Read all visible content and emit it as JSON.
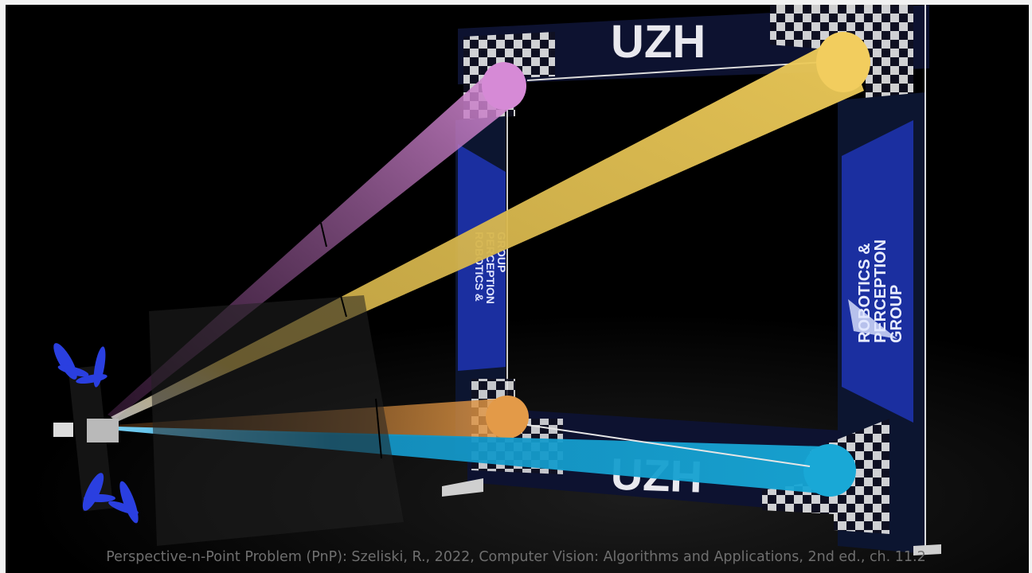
{
  "gate": {
    "banner_text_top": "UZH",
    "banner_text_bottom": "UZH",
    "side_logo_line1": "ROBOTICS &",
    "side_logo_line2": "PERCEPTION",
    "side_logo_line3": "GROUP"
  },
  "rays": [
    {
      "name": "pink",
      "color": "#d68ad6"
    },
    {
      "name": "yellow",
      "color": "#f0cd5a"
    },
    {
      "name": "orange",
      "color": "#e79a45"
    },
    {
      "name": "cyan",
      "color": "#14a8d8"
    }
  ],
  "caption": "Perspective-n-Point Problem (PnP):  Szeliski, R., 2022, Computer Vision: Algorithms and Applications, 2nd ed., ch. 11.2"
}
